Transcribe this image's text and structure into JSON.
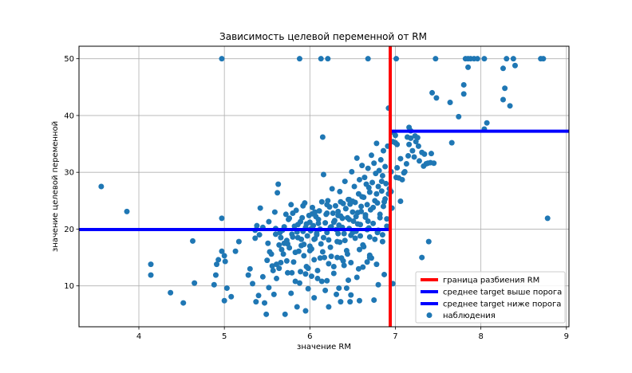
{
  "chart_data": {
    "type": "scatter",
    "title": "Зависимость целевой переменной от RM",
    "xlabel": "значение RM",
    "ylabel": "значение целевой переменной",
    "xlim": [
      3.3,
      9.03
    ],
    "ylim": [
      2.8,
      52.2
    ],
    "xticks": [
      4,
      5,
      6,
      7,
      8,
      9
    ],
    "yticks": [
      10,
      20,
      30,
      40,
      50
    ],
    "grid": true,
    "legend_position": "lower-right",
    "colors": {
      "points": "#1f77b4",
      "split": "#ff0000",
      "mean_above": "#0000ff",
      "mean_below": "#0000ff"
    },
    "split_line": {
      "name": "граница разбиения RM",
      "x": 6.94
    },
    "mean_above": {
      "name": "среднее target выше порога",
      "y": 37.24,
      "x_from": 6.94,
      "x_to": 9.03
    },
    "mean_below": {
      "name": "среднее target ниже порога",
      "y": 19.93,
      "x_from": 3.3,
      "x_to": 6.94
    },
    "points_name": "наблюдения",
    "points": [
      [
        3.56,
        27.5
      ],
      [
        3.86,
        23.1
      ],
      [
        4.14,
        13.8
      ],
      [
        4.14,
        11.9
      ],
      [
        4.37,
        8.8
      ],
      [
        4.52,
        7.0
      ],
      [
        4.63,
        17.9
      ],
      [
        4.65,
        10.5
      ],
      [
        4.88,
        10.2
      ],
      [
        4.9,
        11.9
      ],
      [
        4.91,
        13.8
      ],
      [
        4.93,
        14.6
      ],
      [
        4.97,
        21.9
      ],
      [
        4.97,
        16.1
      ],
      [
        5.0,
        15.3
      ],
      [
        5.0,
        7.4
      ],
      [
        5.01,
        14.3
      ],
      [
        5.03,
        9.6
      ],
      [
        5.08,
        8.1
      ],
      [
        5.13,
        16.1
      ],
      [
        5.17,
        17.8
      ],
      [
        5.28,
        11.9
      ],
      [
        5.3,
        13.0
      ],
      [
        5.33,
        10.4
      ],
      [
        5.36,
        18.4
      ],
      [
        5.37,
        7.2
      ],
      [
        5.38,
        20.6
      ],
      [
        5.4,
        8.3
      ],
      [
        5.41,
        19.0
      ],
      [
        5.42,
        23.7
      ],
      [
        5.45,
        11.6
      ],
      [
        5.47,
        7.0
      ],
      [
        5.49,
        5.0
      ],
      [
        5.51,
        17.5
      ],
      [
        5.53,
        16.0
      ],
      [
        5.56,
        13.5
      ],
      [
        5.57,
        12.7
      ],
      [
        5.58,
        8.5
      ],
      [
        5.59,
        23.0
      ],
      [
        5.6,
        20.1
      ],
      [
        5.61,
        13.8
      ],
      [
        5.62,
        26.4
      ],
      [
        5.63,
        27.9
      ],
      [
        5.64,
        17.2
      ],
      [
        5.65,
        19.4
      ],
      [
        5.66,
        14.1
      ],
      [
        5.68,
        19.8
      ],
      [
        5.69,
        15.6
      ],
      [
        5.7,
        17.5
      ],
      [
        5.71,
        5.0
      ],
      [
        5.72,
        22.6
      ],
      [
        5.73,
        18.0
      ],
      [
        5.74,
        12.3
      ],
      [
        5.75,
        21.7
      ],
      [
        5.76,
        16.7
      ],
      [
        5.78,
        24.3
      ],
      [
        5.79,
        19.1
      ],
      [
        5.8,
        18.6
      ],
      [
        5.81,
        14.2
      ],
      [
        5.82,
        20.5
      ],
      [
        5.83,
        10.8
      ],
      [
        5.84,
        23.3
      ],
      [
        5.85,
        6.3
      ],
      [
        5.86,
        18.5
      ],
      [
        5.87,
        16.1
      ],
      [
        5.88,
        10.5
      ],
      [
        5.89,
        21.3
      ],
      [
        5.9,
        17.1
      ],
      [
        5.91,
        22.0
      ],
      [
        5.92,
        19.6
      ],
      [
        5.93,
        15.3
      ],
      [
        5.94,
        24.6
      ],
      [
        5.95,
        12.1
      ],
      [
        5.96,
        20.9
      ],
      [
        5.97,
        18.8
      ],
      [
        5.98,
        13.1
      ],
      [
        5.99,
        22.4
      ],
      [
        6.0,
        17.0
      ],
      [
        6.0,
        21.2
      ],
      [
        6.01,
        19.7
      ],
      [
        6.02,
        16.5
      ],
      [
        6.03,
        23.8
      ],
      [
        6.04,
        20.6
      ],
      [
        6.05,
        14.6
      ],
      [
        6.06,
        18.3
      ],
      [
        6.07,
        22.2
      ],
      [
        6.08,
        19.3
      ],
      [
        6.09,
        12.7
      ],
      [
        6.1,
        21.7
      ],
      [
        6.11,
        23.2
      ],
      [
        6.12,
        20.0
      ],
      [
        6.13,
        17.4
      ],
      [
        6.14,
        24.8
      ],
      [
        6.15,
        36.2
      ],
      [
        6.16,
        29.6
      ],
      [
        6.17,
        15.0
      ],
      [
        6.18,
        21.1
      ],
      [
        6.19,
        22.6
      ],
      [
        6.2,
        19.4
      ],
      [
        6.21,
        25.0
      ],
      [
        6.22,
        18.1
      ],
      [
        6.23,
        23.9
      ],
      [
        6.24,
        16.8
      ],
      [
        6.25,
        20.4
      ],
      [
        6.26,
        27.1
      ],
      [
        6.27,
        22.8
      ],
      [
        6.28,
        13.4
      ],
      [
        6.29,
        21.5
      ],
      [
        6.3,
        24.1
      ],
      [
        6.31,
        19.9
      ],
      [
        6.32,
        17.8
      ],
      [
        6.33,
        23.1
      ],
      [
        6.34,
        20.7
      ],
      [
        6.35,
        26.6
      ],
      [
        6.36,
        22.3
      ],
      [
        6.37,
        14.9
      ],
      [
        6.38,
        21.9
      ],
      [
        6.39,
        24.5
      ],
      [
        6.4,
        19.2
      ],
      [
        6.41,
        28.4
      ],
      [
        6.42,
        23.6
      ],
      [
        6.43,
        16.2
      ],
      [
        6.44,
        22.0
      ],
      [
        6.45,
        25.2
      ],
      [
        6.46,
        20.1
      ],
      [
        6.47,
        24.4
      ],
      [
        6.48,
        18.9
      ],
      [
        6.49,
        30.1
      ],
      [
        6.5,
        23.0
      ],
      [
        6.51,
        21.4
      ],
      [
        6.52,
        27.5
      ],
      [
        6.53,
        24.7
      ],
      [
        6.54,
        19.6
      ],
      [
        6.55,
        32.5
      ],
      [
        6.56,
        22.9
      ],
      [
        6.57,
        26.2
      ],
      [
        6.58,
        28.7
      ],
      [
        6.59,
        20.8
      ],
      [
        6.6,
        24.0
      ],
      [
        6.61,
        31.2
      ],
      [
        6.62,
        17.2
      ],
      [
        6.63,
        25.6
      ],
      [
        6.64,
        29.1
      ],
      [
        6.65,
        22.5
      ],
      [
        6.66,
        27.9
      ],
      [
        6.67,
        24.3
      ],
      [
        6.68,
        30.7
      ],
      [
        6.69,
        20.2
      ],
      [
        6.7,
        26.5
      ],
      [
        6.71,
        23.4
      ],
      [
        6.72,
        33.0
      ],
      [
        6.73,
        28.2
      ],
      [
        6.74,
        21.0
      ],
      [
        6.75,
        31.6
      ],
      [
        6.76,
        25.0
      ],
      [
        6.77,
        29.8
      ],
      [
        6.78,
        35.1
      ],
      [
        6.79,
        24.6
      ],
      [
        6.8,
        27.5
      ],
      [
        6.81,
        30.3
      ],
      [
        6.82,
        22.0
      ],
      [
        6.83,
        32.2
      ],
      [
        6.84,
        26.7
      ],
      [
        6.85,
        29.4
      ],
      [
        6.86,
        33.8
      ],
      [
        6.87,
        24.8
      ],
      [
        6.88,
        31.0
      ],
      [
        6.89,
        28.0
      ],
      [
        6.9,
        20.5
      ],
      [
        6.91,
        34.6
      ],
      [
        6.92,
        41.3
      ],
      [
        6.93,
        27.1
      ],
      [
        6.13,
        50.0
      ],
      [
        5.88,
        50.0
      ],
      [
        4.97,
        50.0
      ],
      [
        6.68,
        50.0
      ],
      [
        6.21,
        50.0
      ],
      [
        7.01,
        50.0
      ],
      [
        7.47,
        50.0
      ],
      [
        7.82,
        50.0
      ],
      [
        7.85,
        50.0
      ],
      [
        7.88,
        50.0
      ],
      [
        7.92,
        50.0
      ],
      [
        7.96,
        50.0
      ],
      [
        8.04,
        50.0
      ],
      [
        8.3,
        50.0
      ],
      [
        8.38,
        50.0
      ],
      [
        8.7,
        50.0
      ],
      [
        8.73,
        50.0
      ],
      [
        8.4,
        48.8
      ],
      [
        8.26,
        48.3
      ],
      [
        7.85,
        48.5
      ],
      [
        7.8,
        45.4
      ],
      [
        8.28,
        44.8
      ],
      [
        7.43,
        44.0
      ],
      [
        7.48,
        43.1
      ],
      [
        7.64,
        42.3
      ],
      [
        7.8,
        43.8
      ],
      [
        8.26,
        42.8
      ],
      [
        8.34,
        41.7
      ],
      [
        7.74,
        39.8
      ],
      [
        8.04,
        37.6
      ],
      [
        8.07,
        38.7
      ],
      [
        7.16,
        37.9
      ],
      [
        7.18,
        37.3
      ],
      [
        7.23,
        36.4
      ],
      [
        7.14,
        36.2
      ],
      [
        7.24,
        35.4
      ],
      [
        7.27,
        34.6
      ],
      [
        7.31,
        33.5
      ],
      [
        7.34,
        33.2
      ],
      [
        7.42,
        33.3
      ],
      [
        7.15,
        32.9
      ],
      [
        7.22,
        32.7
      ],
      [
        7.28,
        32.0
      ],
      [
        7.33,
        31.1
      ],
      [
        7.41,
        31.7
      ],
      [
        7.45,
        31.6
      ],
      [
        7.02,
        30.8
      ],
      [
        7.1,
        29.9
      ],
      [
        7.04,
        29.0
      ],
      [
        7.08,
        28.7
      ],
      [
        7.13,
        31.5
      ],
      [
        7.18,
        36.0
      ],
      [
        7.2,
        33.8
      ],
      [
        7.36,
        31.5
      ],
      [
        7.66,
        35.2
      ],
      [
        7.0,
        35.2
      ],
      [
        6.98,
        37.0
      ],
      [
        7.06,
        24.9
      ],
      [
        7.31,
        15.0
      ],
      [
        7.39,
        17.8
      ],
      [
        6.97,
        10.4
      ],
      [
        8.78,
        21.9
      ],
      [
        7.0,
        36.5
      ],
      [
        6.95,
        30.1
      ],
      [
        6.97,
        35.4
      ],
      [
        7.02,
        34.9
      ],
      [
        7.06,
        32.4
      ],
      [
        7.11,
        30.1
      ],
      [
        6.95,
        26.6
      ],
      [
        7.01,
        29.1
      ],
      [
        7.16,
        34.9
      ],
      [
        7.26,
        36.1
      ],
      [
        7.38,
        31.6
      ],
      [
        6.96,
        23.7
      ],
      [
        5.89,
        12.5
      ],
      [
        6.02,
        11.7
      ],
      [
        6.18,
        9.2
      ],
      [
        6.31,
        8.5
      ],
      [
        6.36,
        7.2
      ],
      [
        6.43,
        9.6
      ],
      [
        6.05,
        7.9
      ],
      [
        6.47,
        7.2
      ],
      [
        6.55,
        11.5
      ],
      [
        6.62,
        13.3
      ],
      [
        6.75,
        7.5
      ],
      [
        6.8,
        10.2
      ],
      [
        6.72,
        14.9
      ],
      [
        6.87,
        12.0
      ],
      [
        5.95,
        5.6
      ],
      [
        6.22,
        6.3
      ],
      [
        5.52,
        9.7
      ],
      [
        5.61,
        11.3
      ],
      [
        5.78,
        8.7
      ],
      [
        5.98,
        9.5
      ],
      [
        6.14,
        10.8
      ],
      [
        6.28,
        12.2
      ],
      [
        6.4,
        13.6
      ],
      [
        6.45,
        11.0
      ],
      [
        6.58,
        16.4
      ],
      [
        6.7,
        18.6
      ],
      [
        6.85,
        17.8
      ],
      [
        5.5,
        14.5
      ],
      [
        5.55,
        15.6
      ],
      [
        5.67,
        16.4
      ],
      [
        5.73,
        14.4
      ],
      [
        5.83,
        15.9
      ],
      [
        5.93,
        17.3
      ],
      [
        6.05,
        18.2
      ],
      [
        6.15,
        16.0
      ],
      [
        6.25,
        15.2
      ],
      [
        6.35,
        17.7
      ],
      [
        6.44,
        15.6
      ],
      [
        6.53,
        18.4
      ],
      [
        6.63,
        16.9
      ],
      [
        6.7,
        15.4
      ],
      [
        6.78,
        13.8
      ],
      [
        6.85,
        19.0
      ],
      [
        5.36,
        19.8
      ],
      [
        5.45,
        20.3
      ],
      [
        5.52,
        21.3
      ],
      [
        5.6,
        19.1
      ],
      [
        5.7,
        20.4
      ],
      [
        5.76,
        21.9
      ],
      [
        5.85,
        19.5
      ],
      [
        5.95,
        20.3
      ],
      [
        6.03,
        22.7
      ],
      [
        6.1,
        21.0
      ],
      [
        6.2,
        22.8
      ],
      [
        6.28,
        21.2
      ],
      [
        6.38,
        20.3
      ],
      [
        6.46,
        21.7
      ],
      [
        6.56,
        20.9
      ],
      [
        6.65,
        22.1
      ],
      [
        6.74,
        23.8
      ],
      [
        6.82,
        22.6
      ],
      [
        6.9,
        21.8
      ],
      [
        5.92,
        24.1
      ],
      [
        6.06,
        23.0
      ],
      [
        6.2,
        24.3
      ],
      [
        6.33,
        22.4
      ],
      [
        6.42,
        23.6
      ],
      [
        6.5,
        24.9
      ],
      [
        6.6,
        23.1
      ],
      [
        6.68,
        21.4
      ],
      [
        6.79,
        19.4
      ],
      [
        6.88,
        25.3
      ],
      [
        5.8,
        22.8
      ],
      [
        5.86,
        20.8
      ],
      [
        6.01,
        20.0
      ],
      [
        6.08,
        19.0
      ],
      [
        6.16,
        18.5
      ],
      [
        6.24,
        20.3
      ],
      [
        6.33,
        19.2
      ],
      [
        6.41,
        18.0
      ],
      [
        6.5,
        19.4
      ],
      [
        6.59,
        18.8
      ],
      [
        6.67,
        19.9
      ],
      [
        6.76,
        18.2
      ],
      [
        5.66,
        18.5
      ],
      [
        5.74,
        17.4
      ],
      [
        5.9,
        18.2
      ],
      [
        6.0,
        16.2
      ],
      [
        6.12,
        14.9
      ],
      [
        6.22,
        13.9
      ],
      [
        6.32,
        15.0
      ],
      [
        6.39,
        14.4
      ],
      [
        6.48,
        14.1
      ],
      [
        6.57,
        13.0
      ],
      [
        6.67,
        14.2
      ],
      [
        5.64,
        13.1
      ],
      [
        5.79,
        12.3
      ],
      [
        5.96,
        13.4
      ],
      [
        6.09,
        11.3
      ],
      [
        6.2,
        10.9
      ],
      [
        6.34,
        9.6
      ],
      [
        6.48,
        8.4
      ],
      [
        6.58,
        7.4
      ],
      [
        6.7,
        15.0
      ],
      [
        6.8,
        19.8
      ],
      [
        6.86,
        24.0
      ],
      [
        6.92,
        26.2
      ],
      [
        6.36,
        24.8
      ],
      [
        6.46,
        25.2
      ],
      [
        6.54,
        22.2
      ],
      [
        6.61,
        25.7
      ],
      [
        6.69,
        27.3
      ],
      [
        6.78,
        26.2
      ],
      [
        6.84,
        28.4
      ]
    ]
  }
}
